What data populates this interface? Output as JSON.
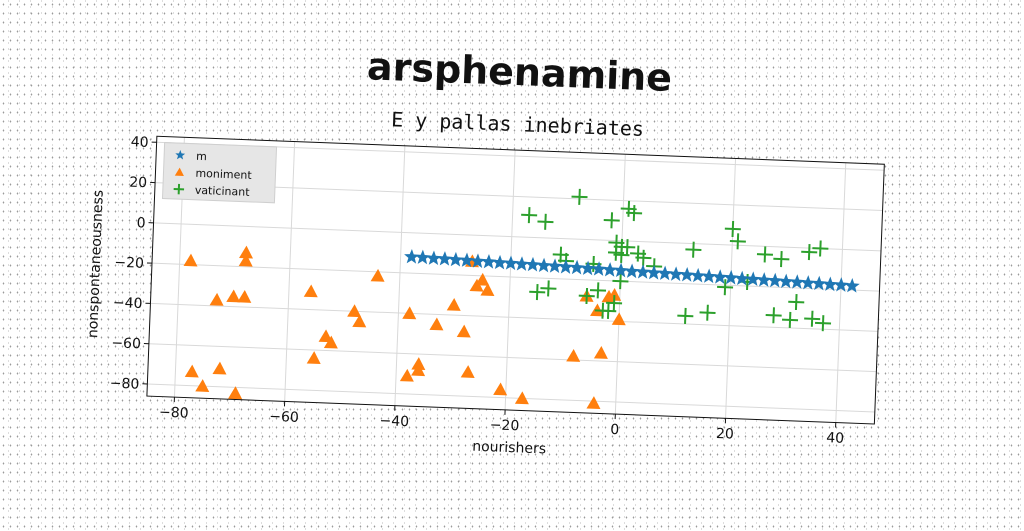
{
  "chart_data": {
    "type": "scatter",
    "title": "arsphenamine",
    "subtitle": "E y pallas inebriates",
    "xlabel": "nourishers",
    "ylabel": "nonspontaneousness",
    "xlim": [
      -85,
      47
    ],
    "ylim": [
      -86,
      43
    ],
    "xticks": [
      -80,
      -60,
      -40,
      -20,
      0,
      20,
      40
    ],
    "yticks": [
      -80,
      -60,
      -40,
      -20,
      0,
      20,
      40
    ],
    "grid": true,
    "legend_position": "top-left",
    "series": [
      {
        "name": "m",
        "marker": "star",
        "color": "#1f77b4",
        "x": [
          -38,
          -36,
          -34,
          -32,
          -30,
          -28,
          -26,
          -24,
          -22,
          -20,
          -18,
          -16,
          -14,
          -12,
          -10,
          -8,
          -6,
          -4,
          -2,
          0,
          2,
          4,
          6,
          8,
          10,
          12,
          14,
          16,
          18,
          20,
          22,
          24,
          26,
          28,
          30,
          32,
          34,
          36,
          38,
          40,
          42
        ],
        "y": [
          -12.0,
          -12.1,
          -12.3,
          -12.4,
          -12.6,
          -12.7,
          -12.9,
          -13.0,
          -13.2,
          -13.3,
          -13.5,
          -13.6,
          -13.8,
          -13.9,
          -14.1,
          -14.2,
          -14.4,
          -14.5,
          -14.7,
          -14.8,
          -15.0,
          -15.1,
          -15.3,
          -15.4,
          -15.6,
          -15.7,
          -15.9,
          -16.0,
          -16.2,
          -16.3,
          -16.5,
          -16.6,
          -16.8,
          -16.9,
          -17.1,
          -17.2,
          -17.4,
          -17.5,
          -17.7,
          -17.8,
          -18.0
        ]
      },
      {
        "name": "moniment",
        "marker": "triangle",
        "color": "#ff7f0e",
        "x": [
          -78,
          -77,
          -75,
          -73,
          -72,
          -70,
          -69,
          -68,
          -68,
          -68,
          -69,
          -56,
          -55,
          -53,
          -52,
          -48,
          -47,
          -44,
          -38,
          -38,
          -36,
          -36,
          -33,
          -30,
          -28,
          -27,
          -27,
          -26,
          -25,
          -24,
          -21,
          -17,
          -8,
          -6,
          -4,
          -4,
          -3,
          -2,
          -1,
          0
        ],
        "y": [
          -18,
          -73,
          -80,
          -37,
          -71,
          -35,
          -83,
          -35,
          -13,
          -17,
          -83,
          -31,
          -64,
          -53,
          -56,
          -40,
          -45,
          -22,
          -40,
          -71,
          -68,
          -65,
          -45,
          -35,
          -48,
          -68,
          -13,
          -25,
          -22,
          -27,
          -76,
          -80,
          -58,
          -28,
          -81,
          -35,
          -56,
          -28,
          -27,
          -39
        ]
      },
      {
        "name": "vaticinant",
        "marker": "plus",
        "color": "#2ca02c",
        "x": [
          -17,
          -15,
          -14,
          -13,
          -11,
          -10,
          -8,
          -6,
          -5,
          -4,
          -3,
          -2,
          -2,
          -1,
          -1,
          -1,
          0,
          0,
          0,
          1,
          1,
          2,
          3,
          4,
          6,
          12,
          13,
          16,
          19,
          20,
          21,
          23,
          26,
          28,
          29,
          31,
          32,
          34,
          35,
          36,
          37
        ],
        "y": [
          11,
          -27,
          8,
          -25,
          -8,
          -11,
          21,
          -28,
          -12,
          -25,
          -35,
          10,
          -35,
          -1,
          -6,
          -31,
          -3,
          -7,
          -20,
          -3,
          16,
          14,
          -6,
          -8,
          -12,
          -36,
          -3,
          -34,
          -21,
          8,
          2,
          -18,
          -4,
          -34,
          -6,
          -36,
          -27,
          -2,
          -35,
          0,
          -37
        ]
      }
    ]
  }
}
